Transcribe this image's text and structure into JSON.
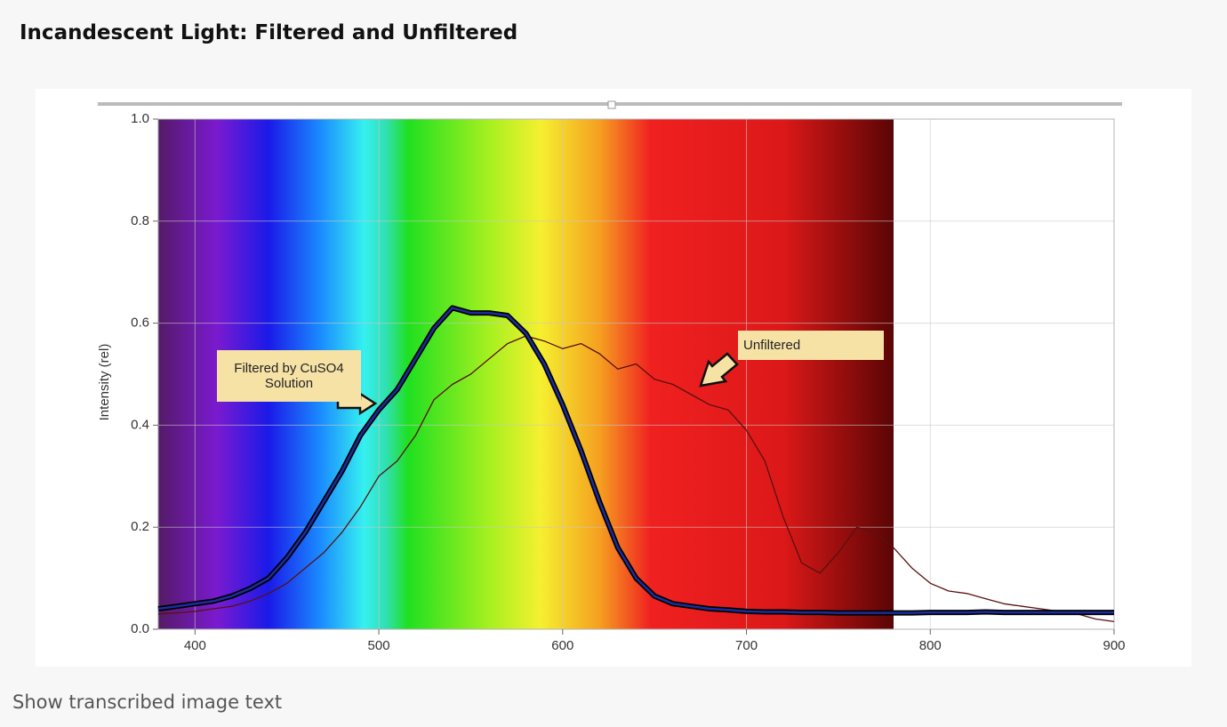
{
  "page_title": "Incandescent Light: Filtered and Unfiltered",
  "footer": "Show transcribed image text",
  "chart_data": {
    "type": "line",
    "y_label": "Intensity (rel)",
    "x": [
      380,
      390,
      400,
      410,
      420,
      430,
      440,
      450,
      460,
      470,
      480,
      490,
      500,
      510,
      520,
      530,
      540,
      550,
      560,
      570,
      580,
      590,
      600,
      610,
      620,
      630,
      640,
      650,
      660,
      670,
      680,
      690,
      700,
      710,
      720,
      730,
      740,
      750,
      760,
      770,
      780,
      790,
      800,
      810,
      820,
      830,
      840,
      850,
      860,
      870,
      880,
      890,
      900
    ],
    "series": [
      {
        "name": "Filtered by CuSO4 Solution",
        "color": "#1c2c9c",
        "values": [
          0.04,
          0.045,
          0.05,
          0.055,
          0.065,
          0.08,
          0.1,
          0.14,
          0.19,
          0.25,
          0.31,
          0.38,
          0.43,
          0.47,
          0.53,
          0.59,
          0.63,
          0.62,
          0.62,
          0.615,
          0.58,
          0.52,
          0.44,
          0.35,
          0.25,
          0.16,
          0.1,
          0.065,
          0.05,
          0.045,
          0.04,
          0.038,
          0.035,
          0.034,
          0.034,
          0.033,
          0.033,
          0.032,
          0.032,
          0.032,
          0.032,
          0.032,
          0.033,
          0.033,
          0.033,
          0.034,
          0.033,
          0.033,
          0.033,
          0.033,
          0.033,
          0.033,
          0.033
        ]
      },
      {
        "name": "Unfiltered",
        "color": "#5a1010",
        "values": [
          0.03,
          0.032,
          0.035,
          0.04,
          0.045,
          0.055,
          0.07,
          0.09,
          0.12,
          0.15,
          0.19,
          0.24,
          0.3,
          0.33,
          0.38,
          0.45,
          0.48,
          0.5,
          0.53,
          0.56,
          0.575,
          0.565,
          0.55,
          0.56,
          0.54,
          0.51,
          0.52,
          0.49,
          0.48,
          0.46,
          0.44,
          0.43,
          0.39,
          0.33,
          0.22,
          0.13,
          0.11,
          0.15,
          0.2,
          0.19,
          0.16,
          0.12,
          0.09,
          0.075,
          0.07,
          0.06,
          0.05,
          0.045,
          0.04,
          0.035,
          0.03,
          0.02,
          0.015
        ]
      }
    ],
    "xlim": [
      380,
      900
    ],
    "ylim": [
      0,
      1
    ],
    "xticks": [
      400,
      500,
      600,
      700,
      800,
      900
    ],
    "yticks": [
      {
        "value": 0,
        "label": "0.0"
      },
      0.2,
      0.4,
      0.6,
      0.8,
      {
        "value": 1,
        "label": "1.0"
      }
    ],
    "grid": true
  }
}
